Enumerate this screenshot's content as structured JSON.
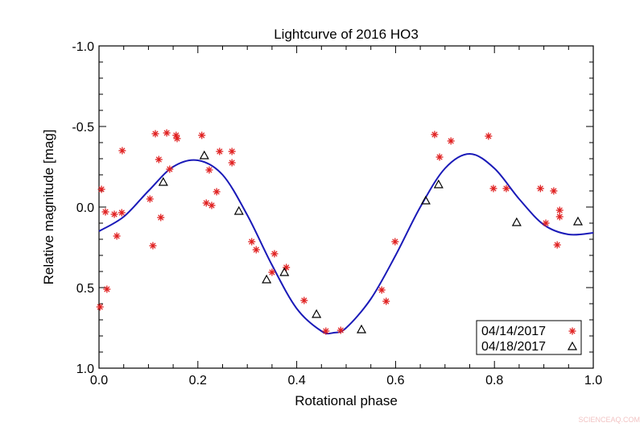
{
  "chart_data": {
    "type": "scatter",
    "title": "Lightcurve of 2016 HO3",
    "xlabel": "Rotational phase",
    "ylabel": "Relative magnitude [mag]",
    "xlim": [
      0.0,
      1.0
    ],
    "ylim": [
      1.0,
      -1.0
    ],
    "y_inverted": true,
    "x_ticks": [
      "0.0",
      "0.2",
      "0.4",
      "0.6",
      "0.8",
      "1.0"
    ],
    "x_tick_values": [
      0,
      0.2,
      0.4,
      0.6,
      0.8,
      1.0
    ],
    "y_ticks": [
      "-1.0",
      "-0.5",
      "0.0",
      "0.5",
      "1.0"
    ],
    "y_tick_values": [
      -1.0,
      -0.5,
      0.0,
      0.5,
      1.0
    ],
    "grid": false,
    "legend_position": "bottom-right",
    "series": [
      {
        "name": "04/14/2017",
        "marker": "asterisk",
        "color": "#e02020",
        "points": [
          [
            0.005,
            -0.11
          ],
          [
            0.013,
            0.03
          ],
          [
            0.016,
            0.51
          ],
          [
            0.002,
            0.62
          ],
          [
            0.031,
            0.045
          ],
          [
            0.036,
            0.18
          ],
          [
            0.046,
            0.035
          ],
          [
            0.047,
            -0.35
          ],
          [
            0.103,
            -0.05
          ],
          [
            0.109,
            0.24
          ],
          [
            0.114,
            -0.455
          ],
          [
            0.121,
            -0.295
          ],
          [
            0.125,
            0.065
          ],
          [
            0.137,
            -0.46
          ],
          [
            0.143,
            -0.235
          ],
          [
            0.156,
            -0.445
          ],
          [
            0.158,
            -0.425
          ],
          [
            0.208,
            -0.445
          ],
          [
            0.217,
            -0.025
          ],
          [
            0.223,
            -0.23
          ],
          [
            0.228,
            -0.01
          ],
          [
            0.238,
            -0.095
          ],
          [
            0.244,
            -0.345
          ],
          [
            0.269,
            -0.345
          ],
          [
            0.269,
            -0.275
          ],
          [
            0.309,
            0.215
          ],
          [
            0.318,
            0.265
          ],
          [
            0.355,
            0.29
          ],
          [
            0.35,
            0.405
          ],
          [
            0.379,
            0.375
          ],
          [
            0.415,
            0.58
          ],
          [
            0.459,
            0.77
          ],
          [
            0.489,
            0.765
          ],
          [
            0.599,
            0.215
          ],
          [
            0.572,
            0.515
          ],
          [
            0.581,
            0.585
          ],
          [
            0.679,
            -0.45
          ],
          [
            0.689,
            -0.31
          ],
          [
            0.712,
            -0.41
          ],
          [
            0.788,
            -0.44
          ],
          [
            0.798,
            -0.115
          ],
          [
            0.824,
            -0.115
          ],
          [
            0.893,
            -0.115
          ],
          [
            0.904,
            0.1
          ],
          [
            0.92,
            -0.1
          ],
          [
            0.932,
            0.02
          ],
          [
            0.932,
            0.06
          ],
          [
            0.927,
            0.235
          ]
        ]
      },
      {
        "name": "04/18/2017",
        "marker": "triangle",
        "color": "#000000",
        "points": [
          [
            0.13,
            -0.155
          ],
          [
            0.213,
            -0.32
          ],
          [
            0.283,
            0.025
          ],
          [
            0.339,
            0.45
          ],
          [
            0.375,
            0.405
          ],
          [
            0.44,
            0.665
          ],
          [
            0.531,
            0.76
          ],
          [
            0.661,
            -0.04
          ],
          [
            0.687,
            -0.14
          ],
          [
            0.845,
            0.095
          ],
          [
            0.969,
            0.09
          ]
        ]
      }
    ],
    "fit_curve": {
      "color": "#1a1ab8",
      "x": [
        0,
        0.05,
        0.1,
        0.15,
        0.2,
        0.25,
        0.3,
        0.35,
        0.4,
        0.45,
        0.475,
        0.5,
        0.55,
        0.6,
        0.65,
        0.7,
        0.75,
        0.8,
        0.85,
        0.9,
        0.95,
        1.0
      ],
      "y": [
        0.15,
        0.06,
        -0.1,
        -0.25,
        -0.29,
        -0.2,
        0.05,
        0.36,
        0.63,
        0.77,
        0.78,
        0.75,
        0.57,
        0.3,
        0.0,
        -0.24,
        -0.33,
        -0.24,
        -0.05,
        0.11,
        0.17,
        0.16
      ]
    }
  },
  "watermark": "SCIENCEAQ.COM"
}
